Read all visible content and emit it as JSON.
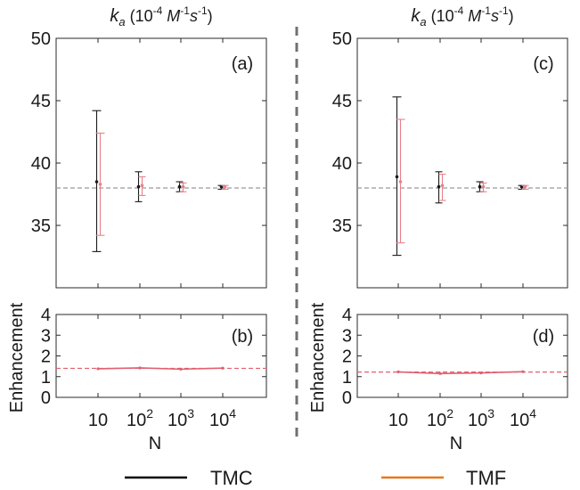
{
  "chart_data": [
    {
      "type": "scatter",
      "panel": "a",
      "title": "k_a (10^-4 M^-1 s^-1)",
      "x_categories": [
        "10",
        "10^2",
        "10^3",
        "10^4"
      ],
      "ylim": [
        30,
        50
      ],
      "yticks": [
        35,
        40,
        45,
        50
      ],
      "reference_line": 38.0,
      "series": [
        {
          "name": "TMC",
          "color": "#1a1a1a",
          "x": [
            "10",
            "10^2",
            "10^3",
            "10^4"
          ],
          "y": [
            38.5,
            38.1,
            38.1,
            38.1
          ],
          "err_low": [
            32.9,
            36.9,
            37.7,
            37.9
          ],
          "err_high": [
            44.2,
            39.3,
            38.5,
            38.2
          ]
        },
        {
          "name": "TMF",
          "color": "#e8808a",
          "x": [
            "10",
            "10^2",
            "10^3",
            "10^4"
          ],
          "y": [
            38.3,
            38.2,
            38.1,
            38.1
          ],
          "err_low": [
            34.2,
            37.4,
            37.7,
            37.9
          ],
          "err_high": [
            42.4,
            38.9,
            38.4,
            38.2
          ]
        }
      ]
    },
    {
      "type": "line",
      "panel": "b",
      "ylabel": "Enhancement",
      "xlabel": "N",
      "x_categories": [
        "10",
        "10^2",
        "10^3",
        "10^4"
      ],
      "ylim": [
        0,
        4
      ],
      "yticks": [
        0,
        1,
        2,
        3,
        4
      ],
      "reference_line": 1.4,
      "series": [
        {
          "name": "TMF",
          "color": "#e06070",
          "x": [
            "10",
            "10^2",
            "10^3",
            "10^4"
          ],
          "y": [
            1.38,
            1.42,
            1.36,
            1.41
          ]
        }
      ]
    },
    {
      "type": "scatter",
      "panel": "c",
      "title": "k_a (10^-4 M^-1 s^-1)",
      "x_categories": [
        "10",
        "10^2",
        "10^3",
        "10^4"
      ],
      "ylim": [
        30,
        50
      ],
      "yticks": [
        35,
        40,
        45,
        50
      ],
      "reference_line": 38.0,
      "series": [
        {
          "name": "TMC",
          "color": "#1a1a1a",
          "x": [
            "10",
            "10^2",
            "10^3",
            "10^4"
          ],
          "y": [
            38.9,
            38.1,
            38.1,
            38.1
          ],
          "err_low": [
            32.6,
            36.8,
            37.7,
            37.9
          ],
          "err_high": [
            45.3,
            39.3,
            38.5,
            38.2
          ]
        },
        {
          "name": "TMF",
          "color": "#e8808a",
          "x": [
            "10",
            "10^2",
            "10^3",
            "10^4"
          ],
          "y": [
            38.5,
            38.2,
            38.1,
            38.1
          ],
          "err_low": [
            33.6,
            37.0,
            37.7,
            37.9
          ],
          "err_high": [
            43.5,
            39.1,
            38.4,
            38.2
          ]
        }
      ]
    },
    {
      "type": "line",
      "panel": "d",
      "ylabel": "Enhancement",
      "xlabel": "N",
      "x_categories": [
        "10",
        "10^2",
        "10^3",
        "10^4"
      ],
      "ylim": [
        0,
        4
      ],
      "yticks": [
        0,
        1,
        2,
        3,
        4
      ],
      "reference_line": 1.22,
      "series": [
        {
          "name": "TMF",
          "color": "#e06070",
          "x": [
            "10",
            "10^2",
            "10^3",
            "10^4"
          ],
          "y": [
            1.23,
            1.15,
            1.18,
            1.24
          ]
        }
      ]
    }
  ],
  "labels": {
    "title_k": "k",
    "title_sub": "a",
    "title_rest": "(10",
    "title_exp": "-4",
    "title_unit_m": "M",
    "title_unit_m_exp": "-1",
    "title_unit_s": "s",
    "title_unit_s_exp": "-1",
    "title_close": ")",
    "panel_a": "(a)",
    "panel_b": "(b)",
    "panel_c": "(c)",
    "panel_d": "(d)",
    "ylabel": "Enhancement",
    "xlabel": "N",
    "xtick_base": "10",
    "xtick_exps": [
      "",
      "2",
      "3",
      "4"
    ]
  },
  "legend": [
    {
      "name": "TMC",
      "color": "#000000"
    },
    {
      "name": "TMF",
      "color": "#e8781e"
    }
  ],
  "colors": {
    "divider": "#707070",
    "reference_top": "#9a9a9a",
    "reference_bottom": "#e06070",
    "frame": "#2a2a2a"
  }
}
